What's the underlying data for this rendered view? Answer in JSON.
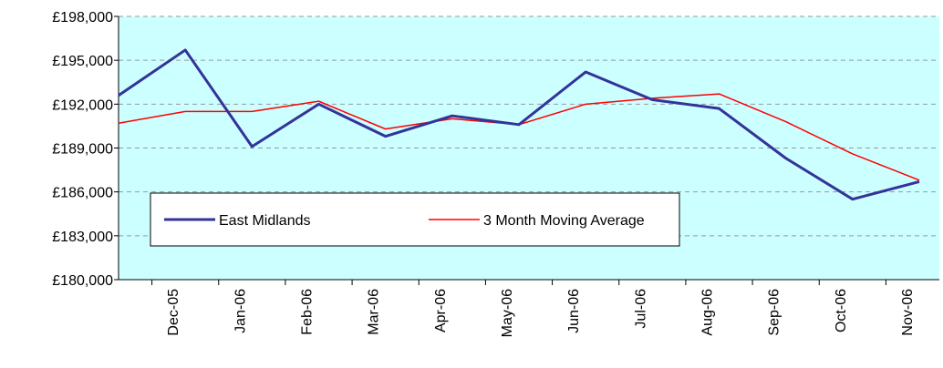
{
  "chart_data": {
    "type": "line",
    "categories": [
      null,
      "Dec-05",
      "Jan-06",
      "Feb-06",
      "Mar-06",
      "Apr-06",
      "May-06",
      "Jun-06",
      "Jul-06",
      "Aug-06",
      "Sep-06",
      "Oct-06",
      "Nov-06"
    ],
    "series": [
      {
        "name": "East Midlands",
        "color": "#333399",
        "values": [
          192600,
          195700,
          189100,
          192000,
          189800,
          191200,
          190600,
          194200,
          192300,
          191700,
          188300,
          185500,
          186700
        ]
      },
      {
        "name": "3 Month Moving Average",
        "color": "#ff0000",
        "values": [
          190700,
          191500,
          191500,
          192200,
          190300,
          191000,
          190600,
          192000,
          192400,
          192700,
          190800,
          188600,
          186800
        ]
      }
    ],
    "ylim": [
      180000,
      198000
    ],
    "yticks": [
      {
        "value": 180000,
        "label": "£180,000"
      },
      {
        "value": 183000,
        "label": "£183,000"
      },
      {
        "value": 186000,
        "label": "£186,000"
      },
      {
        "value": 189000,
        "label": "£189,000"
      },
      {
        "value": 192000,
        "label": "£192,000"
      },
      {
        "value": 195000,
        "label": "£195,000"
      },
      {
        "value": 198000,
        "label": "£198,000"
      }
    ],
    "grid": true,
    "background": "#ccffff"
  }
}
